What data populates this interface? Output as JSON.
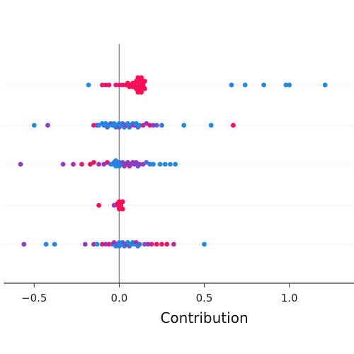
{
  "chart_data": {
    "type": "scatter",
    "title": "",
    "xlabel": "Contribution",
    "ylabel": "",
    "xlim": [
      -0.68,
      1.38
    ],
    "xticks": [
      -0.5,
      0.0,
      0.5,
      1.0
    ],
    "x_tick_labels": [
      "−0.5",
      "0.0",
      "0.5",
      "1.0"
    ],
    "grid": "horizontal dotted",
    "colors": {
      "low": "#1E88E5",
      "mid": "#8E3AC9",
      "high": "#FF0D57"
    },
    "rows": [
      {
        "points": [
          {
            "x": -0.18,
            "c": 0
          },
          {
            "x": -0.1,
            "c": 0.9
          },
          {
            "x": -0.08,
            "c": 0.95
          },
          {
            "x": -0.06,
            "c": 0.9
          },
          {
            "x": -0.02,
            "c": 0.85
          },
          {
            "x": 0.0,
            "c": 0.95
          },
          {
            "x": 0.02,
            "c": 0.9
          },
          {
            "x": 0.04,
            "c": 1
          },
          {
            "x": 0.05,
            "c": 1
          },
          {
            "x": 0.06,
            "c": 1
          },
          {
            "x": 0.07,
            "c": 1
          },
          {
            "x": 0.08,
            "c": 1
          },
          {
            "x": 0.08,
            "c": 1
          },
          {
            "x": 0.09,
            "c": 1
          },
          {
            "x": 0.09,
            "c": 1
          },
          {
            "x": 0.1,
            "c": 1
          },
          {
            "x": 0.1,
            "c": 1
          },
          {
            "x": 0.1,
            "c": 1
          },
          {
            "x": 0.11,
            "c": 1
          },
          {
            "x": 0.11,
            "c": 1
          },
          {
            "x": 0.11,
            "c": 1
          },
          {
            "x": 0.11,
            "c": 1
          },
          {
            "x": 0.12,
            "c": 1
          },
          {
            "x": 0.12,
            "c": 1
          },
          {
            "x": 0.12,
            "c": 1
          },
          {
            "x": 0.12,
            "c": 1
          },
          {
            "x": 0.13,
            "c": 1
          },
          {
            "x": 0.13,
            "c": 1
          },
          {
            "x": 0.13,
            "c": 1
          },
          {
            "x": 0.13,
            "c": 1
          },
          {
            "x": 0.13,
            "c": 1
          },
          {
            "x": 0.14,
            "c": 1
          },
          {
            "x": 0.14,
            "c": 1
          },
          {
            "x": 0.14,
            "c": 1
          },
          {
            "x": 0.15,
            "c": 1
          },
          {
            "x": 0.15,
            "c": 1
          },
          {
            "x": 0.66,
            "c": 0
          },
          {
            "x": 0.74,
            "c": 0
          },
          {
            "x": 0.85,
            "c": 0
          },
          {
            "x": 0.98,
            "c": 0
          },
          {
            "x": 1.0,
            "c": 0
          },
          {
            "x": 1.21,
            "c": 0
          }
        ]
      },
      {
        "points": [
          {
            "x": -0.5,
            "c": 0
          },
          {
            "x": -0.42,
            "c": 0.5
          },
          {
            "x": -0.15,
            "c": 0.9
          },
          {
            "x": -0.13,
            "c": 0.6
          },
          {
            "x": -0.12,
            "c": 0
          },
          {
            "x": -0.1,
            "c": 0
          },
          {
            "x": -0.09,
            "c": 0.1
          },
          {
            "x": -0.08,
            "c": 0
          },
          {
            "x": -0.07,
            "c": 0.2
          },
          {
            "x": -0.06,
            "c": 0
          },
          {
            "x": -0.05,
            "c": 0.3
          },
          {
            "x": -0.04,
            "c": 0
          },
          {
            "x": -0.03,
            "c": 0
          },
          {
            "x": -0.02,
            "c": 0.1
          },
          {
            "x": -0.01,
            "c": 0
          },
          {
            "x": 0.0,
            "c": 0
          },
          {
            "x": 0.0,
            "c": 0.4
          },
          {
            "x": 0.01,
            "c": 0
          },
          {
            "x": 0.02,
            "c": 0.2
          },
          {
            "x": 0.03,
            "c": 0
          },
          {
            "x": 0.04,
            "c": 0.5
          },
          {
            "x": 0.05,
            "c": 0
          },
          {
            "x": 0.06,
            "c": 0.1
          },
          {
            "x": 0.07,
            "c": 0.3
          },
          {
            "x": 0.08,
            "c": 0
          },
          {
            "x": 0.09,
            "c": 0.6
          },
          {
            "x": 0.1,
            "c": 0
          },
          {
            "x": 0.11,
            "c": 0.2
          },
          {
            "x": 0.12,
            "c": 0
          },
          {
            "x": 0.14,
            "c": 0.8
          },
          {
            "x": 0.16,
            "c": 0.5
          },
          {
            "x": 0.18,
            "c": 0.9
          },
          {
            "x": 0.2,
            "c": 0.5
          },
          {
            "x": 0.22,
            "c": 0.3
          },
          {
            "x": 0.25,
            "c": 0.1
          },
          {
            "x": 0.38,
            "c": 0
          },
          {
            "x": 0.54,
            "c": 0
          },
          {
            "x": 0.67,
            "c": 1
          }
        ]
      },
      {
        "points": [
          {
            "x": -0.58,
            "c": 0.5
          },
          {
            "x": -0.33,
            "c": 0.5
          },
          {
            "x": -0.27,
            "c": 0.6
          },
          {
            "x": -0.22,
            "c": 0.9
          },
          {
            "x": -0.17,
            "c": 1
          },
          {
            "x": -0.15,
            "c": 0.9
          },
          {
            "x": -0.12,
            "c": 0.6
          },
          {
            "x": -0.09,
            "c": 0.5
          },
          {
            "x": -0.07,
            "c": 0.9
          },
          {
            "x": -0.05,
            "c": 0
          },
          {
            "x": -0.04,
            "c": 0
          },
          {
            "x": -0.03,
            "c": 0.1
          },
          {
            "x": -0.02,
            "c": 0
          },
          {
            "x": -0.02,
            "c": 0
          },
          {
            "x": -0.01,
            "c": 0
          },
          {
            "x": 0.0,
            "c": 0.1
          },
          {
            "x": 0.0,
            "c": 0
          },
          {
            "x": 0.01,
            "c": 0
          },
          {
            "x": 0.02,
            "c": 0.4
          },
          {
            "x": 0.03,
            "c": 0.5
          },
          {
            "x": 0.04,
            "c": 0.6
          },
          {
            "x": 0.05,
            "c": 0.5
          },
          {
            "x": 0.06,
            "c": 0.7
          },
          {
            "x": 0.07,
            "c": 0.5
          },
          {
            "x": 0.08,
            "c": 0.6
          },
          {
            "x": 0.09,
            "c": 0.4
          },
          {
            "x": 0.1,
            "c": 0.5
          },
          {
            "x": 0.11,
            "c": 0.3
          },
          {
            "x": 0.12,
            "c": 0.5
          },
          {
            "x": 0.14,
            "c": 0.5
          },
          {
            "x": 0.16,
            "c": 0.2
          },
          {
            "x": 0.18,
            "c": 0.1
          },
          {
            "x": 0.2,
            "c": 0
          },
          {
            "x": 0.24,
            "c": 0
          },
          {
            "x": 0.27,
            "c": 0
          },
          {
            "x": 0.3,
            "c": 0
          },
          {
            "x": 0.33,
            "c": 0
          }
        ]
      },
      {
        "points": [
          {
            "x": -0.12,
            "c": 1
          },
          {
            "x": -0.03,
            "c": 0.5
          },
          {
            "x": -0.01,
            "c": 1
          },
          {
            "x": -0.01,
            "c": 1
          },
          {
            "x": 0.0,
            "c": 1
          },
          {
            "x": 0.0,
            "c": 1
          },
          {
            "x": 0.0,
            "c": 1
          },
          {
            "x": 0.01,
            "c": 1
          },
          {
            "x": 0.01,
            "c": 1
          },
          {
            "x": 0.01,
            "c": 1
          },
          {
            "x": 0.02,
            "c": 1
          },
          {
            "x": 0.02,
            "c": 1
          }
        ]
      },
      {
        "points": [
          {
            "x": -0.56,
            "c": 0.5
          },
          {
            "x": -0.43,
            "c": 0
          },
          {
            "x": -0.38,
            "c": 0
          },
          {
            "x": -0.2,
            "c": 0.5
          },
          {
            "x": -0.15,
            "c": 0.6
          },
          {
            "x": -0.13,
            "c": 0
          },
          {
            "x": -0.1,
            "c": 0.9
          },
          {
            "x": -0.08,
            "c": 0.5
          },
          {
            "x": -0.06,
            "c": 1
          },
          {
            "x": -0.04,
            "c": 0.2
          },
          {
            "x": -0.03,
            "c": 0.6
          },
          {
            "x": -0.02,
            "c": 0
          },
          {
            "x": -0.01,
            "c": 0.4
          },
          {
            "x": 0.0,
            "c": 0
          },
          {
            "x": 0.0,
            "c": 0.1
          },
          {
            "x": 0.01,
            "c": 0
          },
          {
            "x": 0.02,
            "c": 0.2
          },
          {
            "x": 0.03,
            "c": 0
          },
          {
            "x": 0.04,
            "c": 0.5
          },
          {
            "x": 0.05,
            "c": 0
          },
          {
            "x": 0.06,
            "c": 0.3
          },
          {
            "x": 0.07,
            "c": 0
          },
          {
            "x": 0.08,
            "c": 0.1
          },
          {
            "x": 0.09,
            "c": 0
          },
          {
            "x": 0.1,
            "c": 0.6
          },
          {
            "x": 0.11,
            "c": 0
          },
          {
            "x": 0.12,
            "c": 0.2
          },
          {
            "x": 0.15,
            "c": 0.3
          },
          {
            "x": 0.17,
            "c": 0.6
          },
          {
            "x": 0.19,
            "c": 0.8
          },
          {
            "x": 0.22,
            "c": 1
          },
          {
            "x": 0.25,
            "c": 0.9
          },
          {
            "x": 0.28,
            "c": 1
          },
          {
            "x": 0.32,
            "c": 0.7
          },
          {
            "x": 0.5,
            "c": 0
          }
        ]
      }
    ]
  }
}
